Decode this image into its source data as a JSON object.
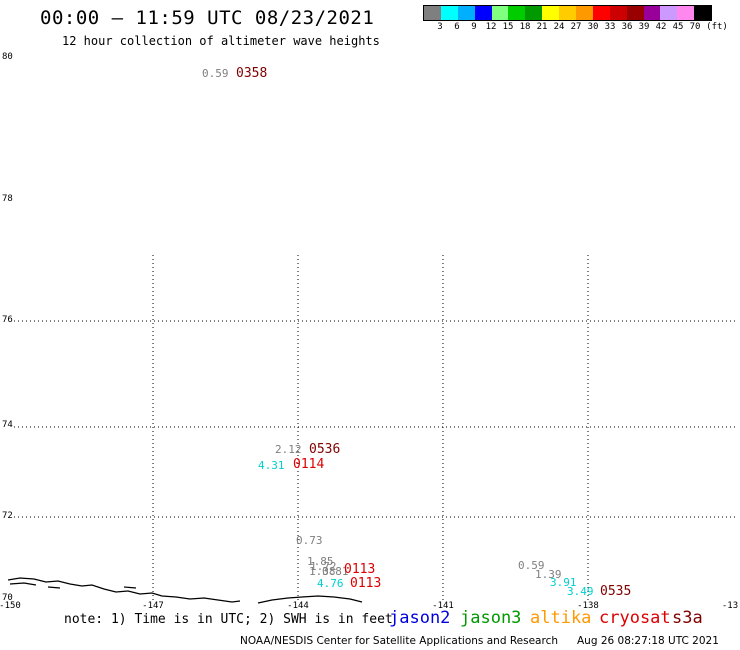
{
  "header": {
    "title": "00:00 – 11:59 UTC 08/23/2021",
    "subtitle": "12 hour collection of altimeter wave heights"
  },
  "colorbar": {
    "colors": [
      "#7f7f7f",
      "#00ffff",
      "#00b0ff",
      "#0000ff",
      "#80ff80",
      "#00cc00",
      "#009900",
      "#ffff00",
      "#ffcc00",
      "#ff9900",
      "#ff0000",
      "#cc0000",
      "#990000",
      "#990099",
      "#cc99ff",
      "#ff88ee",
      "#000000"
    ],
    "labels": [
      "3",
      "6",
      "9",
      "12",
      "15",
      "18",
      "21",
      "24",
      "27",
      "30",
      "33",
      "36",
      "39",
      "42",
      "45",
      "70",
      "(ft)"
    ]
  },
  "axes": {
    "lat_labels": [
      "80",
      "78",
      "76",
      "74",
      "72",
      "70"
    ],
    "lon_labels": [
      "-150",
      "-147",
      "-144",
      "-141",
      "-138",
      "-13"
    ]
  },
  "swh_values": [
    {
      "text": "0.59",
      "color": "#7f7f7f"
    },
    {
      "text": "2.12",
      "color": "#7f7f7f"
    },
    {
      "text": "4.31",
      "color": "#00d0d0"
    },
    {
      "text": "0.73",
      "color": "#7f7f7f"
    },
    {
      "text": "1.85",
      "color": "#7f7f7f"
    },
    {
      "text": "1.72",
      "color": "#7f7f7f"
    },
    {
      "text": "1.38",
      "color": "#7f7f7f"
    },
    {
      "text": "0.81",
      "color": "#7f7f7f"
    },
    {
      "text": "4.76",
      "color": "#00d0d0"
    },
    {
      "text": "0.59",
      "color": "#7f7f7f"
    },
    {
      "text": "1.39",
      "color": "#7f7f7f"
    },
    {
      "text": "3.91",
      "color": "#00d0d0"
    },
    {
      "text": "3.49",
      "color": "#00d0d0"
    }
  ],
  "time_labels": [
    {
      "text": "0358",
      "color": "#800000"
    },
    {
      "text": "0536",
      "color": "#800000"
    },
    {
      "text": "0114",
      "color": "#dd0000"
    },
    {
      "text": "0113",
      "color": "#dd0000"
    },
    {
      "text": "0113",
      "color": "#dd0000"
    },
    {
      "text": "0535",
      "color": "#800000"
    }
  ],
  "footer": {
    "note": "note: 1) Time is in UTC; 2) SWH is in feet",
    "satellites": [
      {
        "text": "jason2",
        "color": "#0000dd"
      },
      {
        "text": "jason3",
        "color": "#009900"
      },
      {
        "text": "altika",
        "color": "#ff9900"
      },
      {
        "text": "cryosat",
        "color": "#dd0000"
      },
      {
        "text": "s3a",
        "color": "#800000"
      }
    ],
    "credit": "NOAA/NESDIS Center for Satellite Applications and Research",
    "generated": "Aug 26 08:27:18 UTC 2021"
  }
}
